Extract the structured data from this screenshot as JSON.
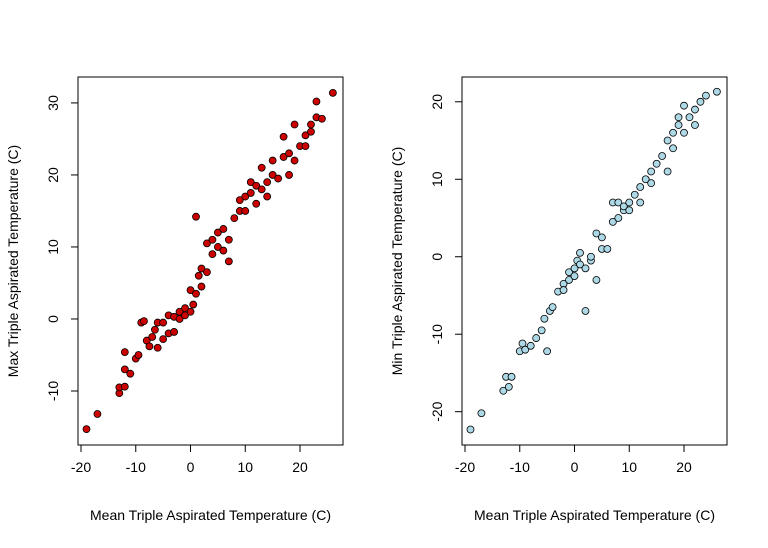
{
  "chart_data": [
    {
      "type": "scatter",
      "x_label": "Mean Triple Aspirated Temperature (C)",
      "y_label": "Max Triple Aspirated Temperature (C)",
      "color": "#cd0000",
      "x": [
        -19,
        -17,
        -13,
        -13,
        -12,
        -12,
        -12,
        -11,
        -10,
        -9.5,
        -9,
        -8.5,
        -8,
        -7.5,
        -7,
        -6.5,
        -6,
        -6,
        -5,
        -5,
        -4,
        -4,
        -3,
        -3,
        -2,
        -2,
        -1,
        -1,
        0,
        0,
        0.5,
        1,
        1,
        1.5,
        2,
        2,
        3,
        3,
        4,
        4,
        5,
        5,
        6,
        6,
        7,
        7,
        8,
        9,
        9,
        10,
        10,
        11,
        11,
        12,
        12,
        13,
        13,
        14,
        14,
        15,
        15,
        16,
        17,
        17,
        18,
        18,
        19,
        19,
        20,
        21,
        21,
        22,
        22,
        23,
        23,
        24,
        26
      ],
      "values": [
        -15.3,
        -13.2,
        -10.3,
        -9.5,
        -9.4,
        -7,
        -4.6,
        -7.6,
        -5.5,
        -5,
        -0.5,
        -0.3,
        -3,
        -3.8,
        -2.5,
        -1.5,
        -4,
        -0.5,
        -0.5,
        -2.8,
        -2,
        0.5,
        -1.8,
        0.3,
        0,
        1,
        0.5,
        1.5,
        1,
        4,
        2,
        3.5,
        14.2,
        6,
        4.5,
        7,
        6.5,
        10.5,
        9,
        11,
        10,
        12,
        9.5,
        12.5,
        11,
        8,
        14,
        16.5,
        15,
        15,
        17,
        17.5,
        19,
        16,
        18.5,
        18,
        21,
        19,
        17,
        20,
        22,
        19.5,
        22.5,
        25.3,
        20,
        23,
        22,
        27,
        24,
        25.5,
        24,
        27,
        26,
        28,
        30.2,
        27.8,
        31.4
      ],
      "xlim": [
        -20.55,
        27.85
      ],
      "ylim": [
        -17.5,
        33.6
      ],
      "xticks": [
        -20,
        -10,
        0,
        10,
        20
      ],
      "yticks": [
        -10,
        0,
        10,
        20,
        30
      ]
    },
    {
      "type": "scatter",
      "x_label": "Mean Triple Aspirated Temperature (C)",
      "y_label": "Min Triple Aspirated Temperature (C)",
      "color": "#add8e6",
      "x": [
        -19,
        -17,
        -13,
        -12.5,
        -12,
        -11.5,
        -10,
        -9.5,
        -9,
        -8,
        -7,
        -6,
        -5.5,
        -5,
        -4.5,
        -4,
        -3,
        -2,
        -2,
        -1,
        -1,
        0,
        0,
        0.5,
        1,
        1,
        2,
        2,
        3,
        3,
        4,
        4,
        5,
        5,
        6,
        7,
        7,
        8,
        8,
        9,
        9,
        10,
        10,
        11,
        12,
        12,
        13,
        14,
        14,
        15,
        16,
        17,
        17,
        18,
        18,
        19,
        19,
        20,
        20,
        21,
        22,
        22,
        23,
        24,
        26
      ],
      "values": [
        -22.3,
        -20.2,
        -17.3,
        -15.5,
        -16.8,
        -15.5,
        -12.2,
        -11.2,
        -12,
        -11.5,
        -10.5,
        -9.5,
        -8,
        -12.2,
        -7,
        -6.5,
        -4.5,
        -3.5,
        -4.3,
        -2,
        -3,
        -1.5,
        -2.5,
        -0.5,
        0.5,
        -1,
        -7,
        -1.5,
        -0.5,
        0,
        3,
        -3,
        2.5,
        1,
        1,
        4.5,
        7,
        7,
        5,
        6,
        6.5,
        6,
        7,
        8,
        9,
        7,
        10,
        11,
        9.5,
        12,
        13,
        11,
        15,
        14,
        16,
        18,
        17,
        19.5,
        16,
        18,
        19,
        17,
        20,
        20.8,
        21.3
      ],
      "xlim": [
        -20.55,
        27.85
      ],
      "ylim": [
        -24.3,
        23.2
      ],
      "xticks": [
        -20,
        -10,
        0,
        10,
        20
      ],
      "yticks": [
        -20,
        -10,
        0,
        10,
        20
      ]
    }
  ]
}
